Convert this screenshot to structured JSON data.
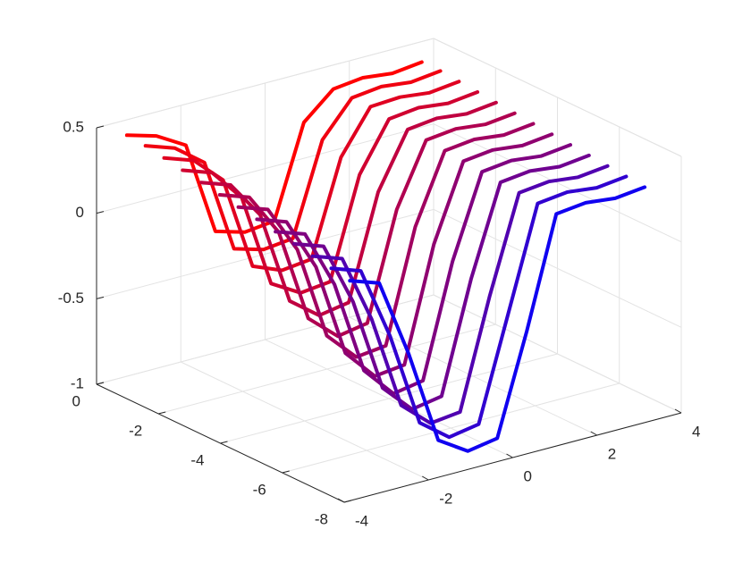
{
  "chart_data": {
    "type": "line3d",
    "y": [
      -3.5,
      -2.8,
      -2.1,
      -1.4,
      -0.7,
      0,
      0.7,
      1.4,
      2.1,
      2.8,
      3.5
    ],
    "series": [
      {
        "x": -0.3,
        "color": "#ff0000",
        "z": [
          0.45,
          0.4,
          0.3,
          -0.25,
          -0.3,
          -0.28,
          0.25,
          0.4,
          0.42,
          0.4,
          0.42
        ]
      },
      {
        "x": -0.9,
        "color": "#f00010",
        "z": [
          0.44,
          0.38,
          0.25,
          -0.3,
          -0.35,
          -0.33,
          0.2,
          0.4,
          0.42,
          0.4,
          0.42
        ]
      },
      {
        "x": -1.5,
        "color": "#e00020",
        "z": [
          0.42,
          0.36,
          0.2,
          -0.35,
          -0.42,
          -0.4,
          0.15,
          0.4,
          0.41,
          0.39,
          0.41
        ]
      },
      {
        "x": -2.1,
        "color": "#d00030",
        "z": [
          0.4,
          0.34,
          0.15,
          -0.4,
          -0.5,
          -0.48,
          0.1,
          0.38,
          0.4,
          0.38,
          0.4
        ]
      },
      {
        "x": -2.7,
        "color": "#c00040",
        "z": [
          0.38,
          0.32,
          0.1,
          -0.45,
          -0.58,
          -0.55,
          0.05,
          0.37,
          0.39,
          0.37,
          0.39
        ]
      },
      {
        "x": -3.3,
        "color": "#b00050",
        "z": [
          0.36,
          0.3,
          0.05,
          -0.5,
          -0.65,
          -0.62,
          0.0,
          0.36,
          0.38,
          0.36,
          0.38
        ]
      },
      {
        "x": -3.9,
        "color": "#a00060",
        "z": [
          0.34,
          0.28,
          0.0,
          -0.55,
          -0.72,
          -0.7,
          -0.05,
          0.35,
          0.37,
          0.35,
          0.37
        ]
      },
      {
        "x": -4.5,
        "color": "#8f0070",
        "z": [
          0.32,
          0.26,
          -0.05,
          -0.6,
          -0.78,
          -0.76,
          -0.1,
          0.34,
          0.36,
          0.34,
          0.36
        ]
      },
      {
        "x": -5.1,
        "color": "#7f0080",
        "z": [
          0.3,
          0.24,
          -0.1,
          -0.65,
          -0.83,
          -0.8,
          -0.15,
          0.33,
          0.35,
          0.33,
          0.35
        ]
      },
      {
        "x": -5.7,
        "color": "#6f0090",
        "z": [
          0.28,
          0.22,
          -0.15,
          -0.7,
          -0.87,
          -0.84,
          -0.2,
          0.32,
          0.34,
          0.32,
          0.34
        ]
      },
      {
        "x": -6.3,
        "color": "#5000b0",
        "z": [
          0.26,
          0.2,
          -0.2,
          -0.75,
          -0.9,
          -0.88,
          -0.25,
          0.31,
          0.33,
          0.31,
          0.33
        ]
      },
      {
        "x": -6.9,
        "color": "#3000d0",
        "z": [
          0.24,
          0.18,
          -0.25,
          -0.8,
          -0.93,
          -0.9,
          -0.3,
          0.3,
          0.32,
          0.3,
          0.32
        ]
      },
      {
        "x": -7.5,
        "color": "#1000f0",
        "z": [
          0.22,
          0.16,
          -0.3,
          -0.85,
          -0.96,
          -0.93,
          -0.35,
          0.29,
          0.31,
          0.29,
          0.31
        ]
      }
    ],
    "xlim": [
      0,
      -8
    ],
    "xticks": [
      0,
      -2,
      -4,
      -6,
      -8
    ],
    "ylim": [
      -4,
      4
    ],
    "yticks": [
      -4,
      -2,
      0,
      2,
      4
    ],
    "zlim": [
      -1,
      0.5
    ],
    "zticks": [
      -1,
      -0.5,
      0,
      0.5
    ],
    "grid": true
  }
}
